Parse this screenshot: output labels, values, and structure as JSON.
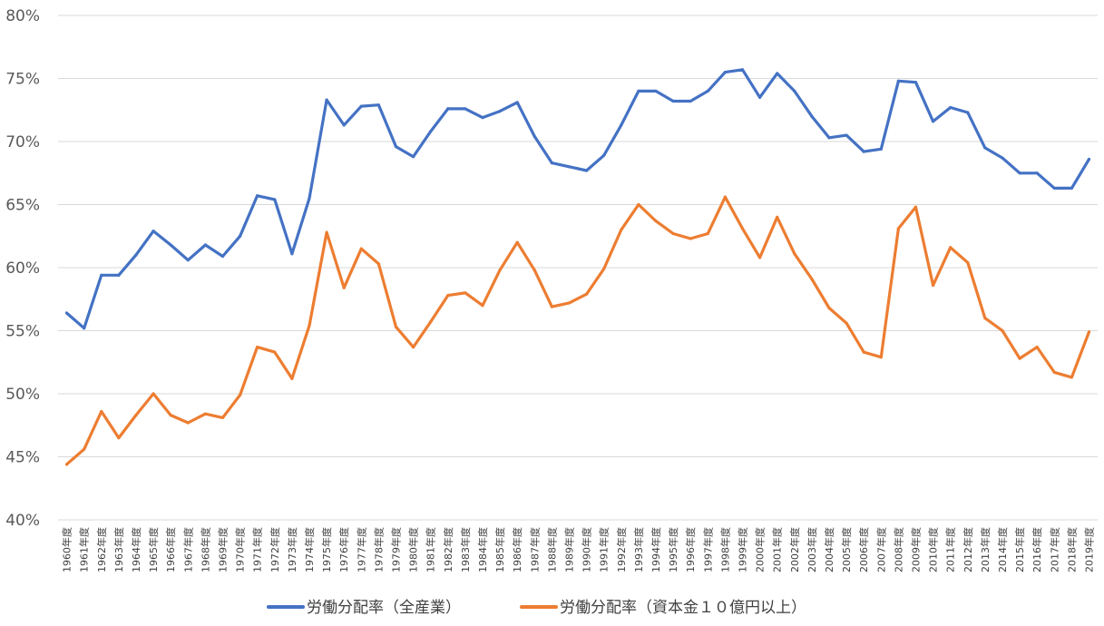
{
  "chart_data": {
    "type": "line",
    "title": "",
    "xlabel": "",
    "ylabel": "",
    "ylim": [
      40,
      80
    ],
    "yticks": [
      "40%",
      "45%",
      "50%",
      "55%",
      "60%",
      "65%",
      "70%",
      "75%",
      "80%"
    ],
    "grid": true,
    "legend": "bottom",
    "categories": [
      "1960年度",
      "1961年度",
      "1962年度",
      "1963年度",
      "1964年度",
      "1965年度",
      "1966年度",
      "1967年度",
      "1968年度",
      "1969年度",
      "1970年度",
      "1971年度",
      "1972年度",
      "1973年度",
      "1974年度",
      "1975年度",
      "1976年度",
      "1977年度",
      "1978年度",
      "1979年度",
      "1980年度",
      "1981年度",
      "1982年度",
      "1983年度",
      "1984年度",
      "1985年度",
      "1986年度",
      "1987年度",
      "1988年度",
      "1989年度",
      "1990年度",
      "1991年度",
      "1992年度",
      "1993年度",
      "1994年度",
      "1995年度",
      "1996年度",
      "1997年度",
      "1998年度",
      "1999年度",
      "2000年度",
      "2001年度",
      "2002年度",
      "2003年度",
      "2004年度",
      "2005年度",
      "2006年度",
      "2007年度",
      "2008年度",
      "2009年度",
      "2010年度",
      "2011年度",
      "2012年度",
      "2013年度",
      "2014年度",
      "2015年度",
      "2016年度",
      "2017年度",
      "2018年度",
      "2019年度"
    ],
    "series": [
      {
        "name": "労働分配率（全産業）",
        "color": "#4472c4",
        "values": [
          56.4,
          55.2,
          59.4,
          59.4,
          61.0,
          62.9,
          61.8,
          60.6,
          61.8,
          60.9,
          62.5,
          65.7,
          65.4,
          61.1,
          65.5,
          73.3,
          71.3,
          72.8,
          72.9,
          69.6,
          68.8,
          70.8,
          72.6,
          72.6,
          71.9,
          72.4,
          73.1,
          70.4,
          68.3,
          68.0,
          67.7,
          68.9,
          71.3,
          74.0,
          74.0,
          73.2,
          73.2,
          74.0,
          75.5,
          75.7,
          73.5,
          75.4,
          74.0,
          72.0,
          70.3,
          70.5,
          69.2,
          69.4,
          74.8,
          74.7,
          71.6,
          72.7,
          72.3,
          69.5,
          68.7,
          67.5,
          67.5,
          66.3,
          66.3,
          68.6
        ]
      },
      {
        "name": "労働分配率（資本金１０億円以上）",
        "color": "#ed7d31",
        "values": [
          44.4,
          45.6,
          48.6,
          46.5,
          48.3,
          50.0,
          48.3,
          47.7,
          48.4,
          48.1,
          49.9,
          53.7,
          53.3,
          51.2,
          55.4,
          62.8,
          58.4,
          61.5,
          60.3,
          55.3,
          53.7,
          55.7,
          57.8,
          58.0,
          57.0,
          59.8,
          62.0,
          59.8,
          56.9,
          57.2,
          57.9,
          59.9,
          63.0,
          65.0,
          63.7,
          62.7,
          62.3,
          62.7,
          65.6,
          63.1,
          60.8,
          64.0,
          61.1,
          59.1,
          56.8,
          55.6,
          53.3,
          52.9,
          63.1,
          64.8,
          58.6,
          61.6,
          60.4,
          56.0,
          55.0,
          52.8,
          53.7,
          51.7,
          51.3,
          54.9
        ]
      }
    ]
  }
}
